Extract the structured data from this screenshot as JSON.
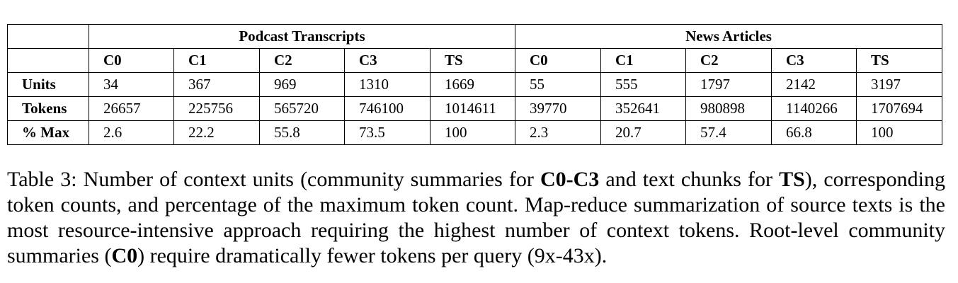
{
  "table": {
    "groups": [
      "Podcast Transcripts",
      "News Articles"
    ],
    "columns": [
      "C0",
      "C1",
      "C2",
      "C3",
      "TS",
      "C0",
      "C1",
      "C2",
      "C3",
      "TS"
    ],
    "rows": [
      {
        "label": "Units",
        "cells": [
          "34",
          "367",
          "969",
          "1310",
          "1669",
          "55",
          "555",
          "1797",
          "2142",
          "3197"
        ]
      },
      {
        "label": "Tokens",
        "cells": [
          "26657",
          "225756",
          "565720",
          "746100",
          "1014611",
          "39770",
          "352641",
          "980898",
          "1140266",
          "1707694"
        ]
      },
      {
        "label": "% Max",
        "cells": [
          "2.6",
          "22.2",
          "55.8",
          "73.5",
          "100",
          "2.3",
          "20.7",
          "57.4",
          "66.8",
          "100"
        ]
      }
    ]
  },
  "caption": {
    "p1": "Table 3: Number of context units (community summaries for ",
    "b1": "C0-C3",
    "p2": " and text chunks for ",
    "b2": "TS",
    "p3": "), corresponding token counts, and percentage of the maximum token count. Map-reduce summarization of source texts is the most resource-intensive approach requiring the highest number of context tokens. Root-level community summaries (",
    "b3": "C0",
    "p4": ") require dramatically fewer tokens per query (9x-43x)."
  }
}
